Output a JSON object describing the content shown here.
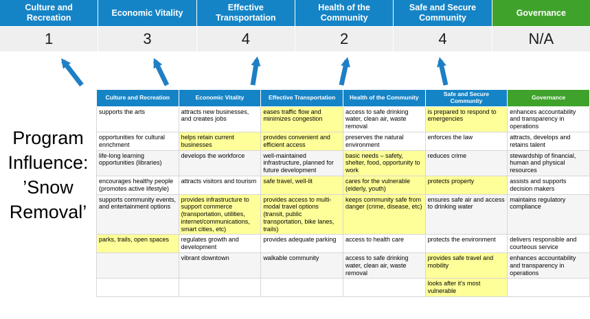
{
  "colors": {
    "blue": "#1584c6",
    "green": "#3fa32b",
    "score_bg": "#efefef",
    "highlight": "#ffff99",
    "arrow": "#1f7fc4"
  },
  "program": {
    "title": "Program\nInfluence:\n’Snow\nRemoval’"
  },
  "summary": {
    "columns": [
      {
        "label": "Culture and Recreation",
        "score": "1",
        "theme": "blue"
      },
      {
        "label": "Economic Vitality",
        "score": "3",
        "theme": "blue"
      },
      {
        "label": "Effective Transportation",
        "score": "4",
        "theme": "blue"
      },
      {
        "label": "Health of the Community",
        "score": "2",
        "theme": "blue"
      },
      {
        "label": "Safe and Secure Community",
        "score": "4",
        "theme": "blue"
      },
      {
        "label": "Governance",
        "score": "N/A",
        "theme": "green"
      }
    ]
  },
  "matrix": {
    "headers": [
      {
        "label": "Culture and Recreation",
        "theme": "blue"
      },
      {
        "label": "Economic Vitality",
        "theme": "blue"
      },
      {
        "label": "Effective Transportation",
        "theme": "blue"
      },
      {
        "label": "Health of the Community",
        "theme": "blue"
      },
      {
        "label": "Safe and Secure Community",
        "theme": "blue"
      },
      {
        "label": "Governance",
        "theme": "green"
      }
    ],
    "rows": [
      [
        {
          "text": "supports the arts",
          "hl": false
        },
        {
          "text": "attracts new businesses, and creates jobs",
          "hl": false
        },
        {
          "text": "eases traffic flow and minimizes congestion",
          "hl": true
        },
        {
          "text": "access to safe drinking water, clean air, waste removal",
          "hl": false
        },
        {
          "text": "is prepared to respond to emergencies",
          "hl": true
        },
        {
          "text": "enhances accountability and transparency in operations",
          "hl": false
        }
      ],
      [
        {
          "text": "opportunities for cultural enrichment",
          "hl": false
        },
        {
          "text": "helps retain current businesses",
          "hl": true
        },
        {
          "text": "provides convenient and efficient access",
          "hl": true
        },
        {
          "text": "preserves the natural environment",
          "hl": false
        },
        {
          "text": "enforces the law",
          "hl": false
        },
        {
          "text": "attracts, develops and retains talent",
          "hl": false
        }
      ],
      [
        {
          "text": "life-long learning opportunities (libraries)",
          "hl": false
        },
        {
          "text": "develops the workforce",
          "hl": false
        },
        {
          "text": "well-maintained infrastructure, planned for future development",
          "hl": false
        },
        {
          "text": "basic needs – safety, shelter, food, opportunity to work",
          "hl": true
        },
        {
          "text": "reduces crime",
          "hl": false
        },
        {
          "text": "stewardship of financial, human and physical resources",
          "hl": false
        }
      ],
      [
        {
          "text": "encourages healthy people (promotes active lifestyle)",
          "hl": false
        },
        {
          "text": "attracts visitors and tourism",
          "hl": false
        },
        {
          "text": "safe travel, well-lit",
          "hl": true
        },
        {
          "text": "cares for the vulnerable (elderly, youth)",
          "hl": true
        },
        {
          "text": "protects property",
          "hl": true
        },
        {
          "text": "assists and supports decision makers",
          "hl": false
        }
      ],
      [
        {
          "text": "supports community events, and entertainment options",
          "hl": false
        },
        {
          "text": "provides infrastructure to support commerce (transportation, utilities, internet/communications, smart cities, etc)",
          "hl": true
        },
        {
          "text": "provides access to multi-modal travel options (transit, public transportation, bike lanes, trails)",
          "hl": true
        },
        {
          "text": "keeps community safe from danger (crime, disease, etc)",
          "hl": true
        },
        {
          "text": "ensures safe air and access to drinking water",
          "hl": false
        },
        {
          "text": "maintains regulatory compliance",
          "hl": false
        }
      ],
      [
        {
          "text": "parks, trails, open spaces",
          "hl": true
        },
        {
          "text": "regulates growth and development",
          "hl": false
        },
        {
          "text": "provides adequate parking",
          "hl": false
        },
        {
          "text": "access to health care",
          "hl": false
        },
        {
          "text": "protects the environment",
          "hl": false
        },
        {
          "text": "delivers responsible and courteous service",
          "hl": false
        }
      ],
      [
        {
          "text": "",
          "hl": false
        },
        {
          "text": "vibrant downtown",
          "hl": false
        },
        {
          "text": "walkable community",
          "hl": false
        },
        {
          "text": "access to safe drinking water, clean air, waste removal",
          "hl": false
        },
        {
          "text": "provides safe travel and mobility",
          "hl": true
        },
        {
          "text": "enhances accountability and transparency in operations",
          "hl": false
        }
      ],
      [
        {
          "text": "",
          "hl": false
        },
        {
          "text": "",
          "hl": false
        },
        {
          "text": "",
          "hl": false
        },
        {
          "text": "",
          "hl": false
        },
        {
          "text": "looks after it's most vulnerable",
          "hl": true
        },
        {
          "text": "",
          "hl": false
        }
      ]
    ]
  }
}
